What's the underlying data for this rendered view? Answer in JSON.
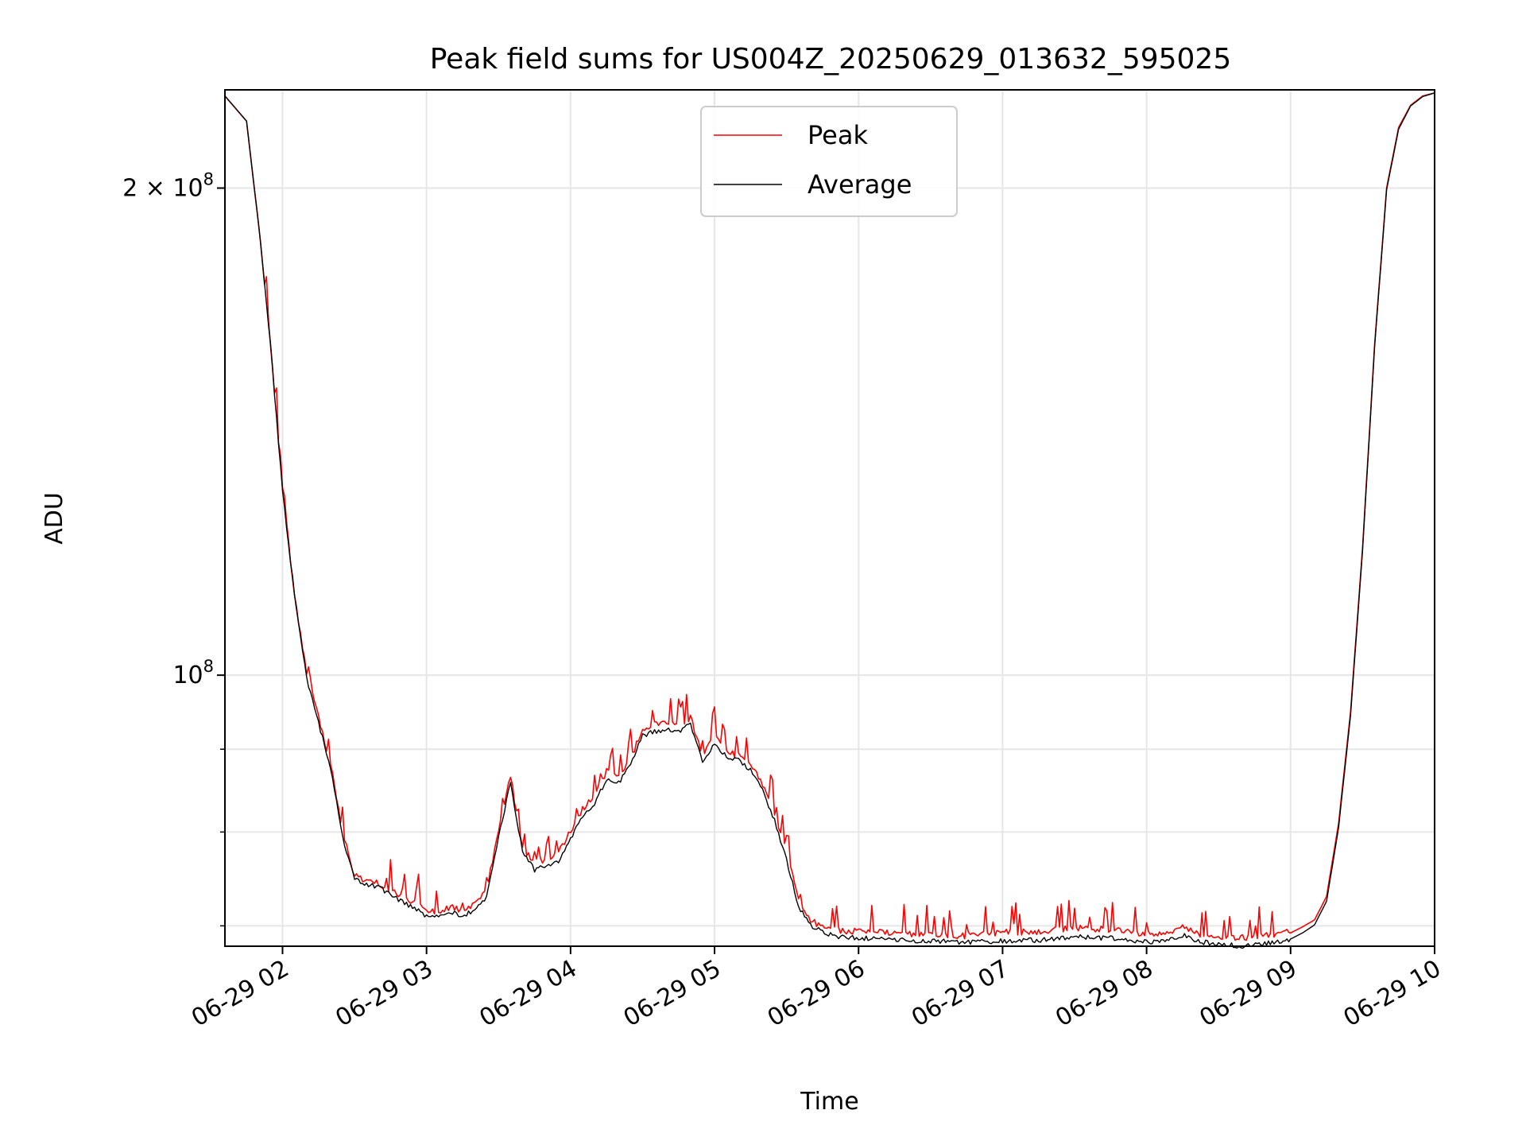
{
  "chart_data": {
    "type": "line",
    "title": "Peak field sums for US004Z_20250629_013632_595025",
    "xlabel": "Time",
    "ylabel": "ADU",
    "yscale": "log",
    "grid": true,
    "legend_position": "top-center",
    "x_date": "06-29",
    "xlim": [
      "01:36",
      "10:00"
    ],
    "ylim": [
      68000000,
      230000000
    ],
    "x_ticks": [
      "06-29 02",
      "06-29 03",
      "06-29 04",
      "06-29 05",
      "06-29 06",
      "06-29 07",
      "06-29 08",
      "06-29 09",
      "06-29 10"
    ],
    "y_ticks_labeled": [
      {
        "value": 100000000,
        "label_base": "10",
        "label_exp": "8"
      },
      {
        "value": 200000000,
        "label_base": "2 × 10",
        "label_exp": "8"
      }
    ],
    "y_minor_ticks": [
      70000000,
      80000000,
      90000000
    ],
    "x": [
      "01:36",
      "01:45",
      "01:50",
      "01:55",
      "02:00",
      "02:05",
      "02:10",
      "02:15",
      "02:20",
      "02:25",
      "02:30",
      "02:35",
      "02:40",
      "02:45",
      "02:50",
      "02:55",
      "03:00",
      "03:05",
      "03:10",
      "03:15",
      "03:20",
      "03:25",
      "03:30",
      "03:35",
      "03:40",
      "03:45",
      "03:50",
      "03:55",
      "04:00",
      "04:05",
      "04:10",
      "04:15",
      "04:20",
      "04:25",
      "04:30",
      "04:35",
      "04:40",
      "04:45",
      "04:50",
      "04:55",
      "05:00",
      "05:05",
      "05:10",
      "05:15",
      "05:20",
      "05:25",
      "05:30",
      "05:35",
      "05:40",
      "05:45",
      "05:50",
      "05:55",
      "06:00",
      "06:15",
      "06:30",
      "06:45",
      "07:00",
      "07:15",
      "07:30",
      "07:45",
      "08:00",
      "08:10",
      "08:15",
      "08:20",
      "08:30",
      "08:40",
      "08:50",
      "09:00",
      "09:05",
      "09:10",
      "09:15",
      "09:20",
      "09:25",
      "09:30",
      "09:35",
      "09:40",
      "09:45",
      "09:50",
      "09:55",
      "10:00"
    ],
    "series": [
      {
        "name": "Peak",
        "color": "#ff0000",
        "values": [
          228000000,
          220000000,
          190000000,
          160000000,
          130000000,
          112000000,
          100000000,
          94000000,
          88000000,
          80000000,
          75000000,
          74500000,
          74200000,
          73500000,
          72700000,
          72200000,
          71500000,
          71200000,
          71800000,
          71300000,
          72200000,
          73500000,
          80000000,
          86500000,
          78000000,
          76500000,
          76800000,
          77500000,
          80000000,
          82500000,
          84000000,
          87000000,
          86500000,
          88500000,
          92500000,
          93000000,
          93300000,
          93000000,
          94000000,
          89000000,
          91500000,
          89500000,
          89000000,
          88000000,
          85500000,
          82000000,
          77500000,
          72500000,
          70400000,
          69800000,
          69500000,
          69200000,
          69400000,
          69100000,
          69000000,
          68900000,
          69200000,
          69300000,
          69700000,
          69500000,
          69000000,
          69300000,
          69800000,
          69100000,
          68800000,
          68700000,
          68900000,
          69300000,
          69900000,
          70600000,
          73000000,
          81000000,
          95000000,
          120000000,
          160000000,
          200000000,
          218000000,
          225000000,
          228000000,
          229000000
        ]
      },
      {
        "name": "Average",
        "color": "#000000",
        "values": [
          228000000,
          220000000,
          190000000,
          160000000,
          130000000,
          112000000,
          99500000,
          93500000,
          87500000,
          79500000,
          74800000,
          74300000,
          74000000,
          73200000,
          72400000,
          71700000,
          71000000,
          70800000,
          71400000,
          70900000,
          71600000,
          72800000,
          79500000,
          85800000,
          77800000,
          75800000,
          76200000,
          76800000,
          79300000,
          81800000,
          83300000,
          86300000,
          85800000,
          87900000,
          91800000,
          92300000,
          92600000,
          92300000,
          93200000,
          88500000,
          90800000,
          89000000,
          88600000,
          87400000,
          84800000,
          81400000,
          76900000,
          72000000,
          70000000,
          69400000,
          69000000,
          68800000,
          68800000,
          68600000,
          68500000,
          68400000,
          68500000,
          68600000,
          68900000,
          68800000,
          68400000,
          68700000,
          69100000,
          68500000,
          68200000,
          68000000,
          68300000,
          68700000,
          69300000,
          70100000,
          72500000,
          80500000,
          94500000,
          119500000,
          159500000,
          199500000,
          217500000,
          224800000,
          227800000,
          229000000
        ]
      }
    ]
  }
}
